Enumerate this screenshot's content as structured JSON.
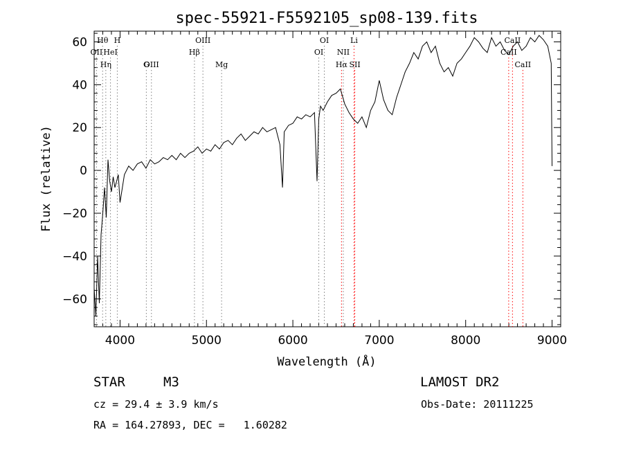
{
  "chart_data": {
    "type": "line",
    "title": "spec-55921-F5592105_sp08-139.fits",
    "xlabel": "Wavelength (Å)",
    "ylabel": "Flux (relative)",
    "xlim": [
      3700,
      9100
    ],
    "ylim": [
      -73,
      65
    ],
    "xticks": [
      4000,
      5000,
      6000,
      7000,
      8000,
      9000
    ],
    "yticks": [
      -60,
      -40,
      -20,
      0,
      20,
      40,
      60
    ],
    "grid": false,
    "series": [
      {
        "x": [
          3700,
          3720,
          3740,
          3760,
          3780,
          3800,
          3820,
          3840,
          3860,
          3880,
          3900,
          3920,
          3940,
          3960,
          3980,
          4000,
          4050,
          4100,
          4150,
          4200,
          4250,
          4300,
          4350,
          4400,
          4450,
          4500,
          4550,
          4600,
          4650,
          4700,
          4750,
          4800,
          4850,
          4900,
          4950,
          5000,
          5050,
          5100,
          5150,
          5200,
          5250,
          5300,
          5350,
          5400,
          5450,
          5500,
          5550,
          5600,
          5650,
          5700,
          5750,
          5800,
          5850,
          5880,
          5900,
          5950,
          6000,
          6050,
          6100,
          6150,
          6200,
          6250,
          6280,
          6300,
          6320,
          6350,
          6400,
          6450,
          6500,
          6550,
          6600,
          6650,
          6700,
          6750,
          6800,
          6850,
          6900,
          6950,
          7000,
          7050,
          7100,
          7150,
          7200,
          7250,
          7300,
          7350,
          7400,
          7450,
          7500,
          7550,
          7600,
          7650,
          7700,
          7750,
          7800,
          7850,
          7900,
          7950,
          8000,
          8050,
          8100,
          8150,
          8200,
          8250,
          8300,
          8350,
          8400,
          8450,
          8500,
          8550,
          8600,
          8650,
          8700,
          8750,
          8800,
          8850,
          8900,
          8950,
          8990,
          9000
        ],
        "values": [
          -55,
          -68,
          -40,
          -62,
          -30,
          -20,
          -8,
          -22,
          5,
          -5,
          -10,
          -3,
          -8,
          -5,
          -2,
          -15,
          -2,
          2,
          0,
          3,
          4,
          1,
          5,
          3,
          4,
          6,
          5,
          7,
          5,
          8,
          6,
          8,
          9,
          11,
          8,
          10,
          9,
          12,
          10,
          13,
          14,
          12,
          15,
          17,
          14,
          16,
          18,
          17,
          20,
          18,
          19,
          20,
          12,
          -8,
          18,
          21,
          22,
          25,
          24,
          26,
          25,
          27,
          -5,
          24,
          30,
          28,
          32,
          35,
          36,
          38,
          31,
          27,
          24,
          22,
          25,
          20,
          28,
          32,
          42,
          33,
          28,
          26,
          34,
          40,
          46,
          50,
          55,
          52,
          58,
          60,
          55,
          58,
          50,
          46,
          48,
          44,
          50,
          52,
          55,
          58,
          62,
          60,
          57,
          55,
          62,
          58,
          60,
          56,
          54,
          58,
          60,
          56,
          58,
          62,
          60,
          63,
          61,
          58,
          50,
          2
        ]
      }
    ],
    "lines": [
      {
        "label": "Hθ",
        "x": 3798,
        "row": 0,
        "color": "#808080"
      },
      {
        "label": "H",
        "x": 3968,
        "row": 0,
        "color": "#808080"
      },
      {
        "label": "OIII",
        "x": 4959,
        "row": 0,
        "color": "#808080"
      },
      {
        "label": "OI",
        "x": 6364,
        "row": 0,
        "color": "#808080"
      },
      {
        "label": "Li",
        "x": 6708,
        "row": 0,
        "color": "#ff0000"
      },
      {
        "label": "CaII",
        "x": 8542,
        "row": 0,
        "color": "#ff0000"
      },
      {
        "label": "OII",
        "x": 3727,
        "row": 1,
        "color": "#808080"
      },
      {
        "label": "HeI",
        "x": 3889,
        "row": 1,
        "color": "#808080"
      },
      {
        "label": "Hβ",
        "x": 4861,
        "row": 1,
        "color": "#808080"
      },
      {
        "label": "OI",
        "x": 6300,
        "row": 1,
        "color": "#808080"
      },
      {
        "label": "NII",
        "x": 6584,
        "row": 1,
        "color": "#808080"
      },
      {
        "label": "CaII",
        "x": 8498,
        "row": 1,
        "color": "#ff0000"
      },
      {
        "label": "OIII",
        "x": 4363,
        "row": 2,
        "color": "#808080"
      },
      {
        "label": "Hη",
        "x": 3835,
        "row": 2,
        "color": "#808080"
      },
      {
        "label": "G",
        "x": 4304,
        "row": 2,
        "color": "#808080"
      },
      {
        "label": "Mg",
        "x": 5175,
        "row": 2,
        "color": "#808080"
      },
      {
        "label": "Hα",
        "x": 6563,
        "row": 2,
        "color": "#ff0000"
      },
      {
        "label": "SII",
        "x": 6717,
        "row": 2,
        "color": "#ff0000"
      },
      {
        "label": "CaII",
        "x": 8662,
        "row": 2,
        "color": "#ff0000"
      }
    ]
  },
  "info": {
    "class": "STAR",
    "subclass": "M3",
    "survey": "LAMOST DR2",
    "cz": "cz = 29.4 ± 3.9 km/s",
    "obs_date": "Obs-Date: 20111225",
    "coords": "RA = 164.27893, DEC =   1.60282"
  }
}
